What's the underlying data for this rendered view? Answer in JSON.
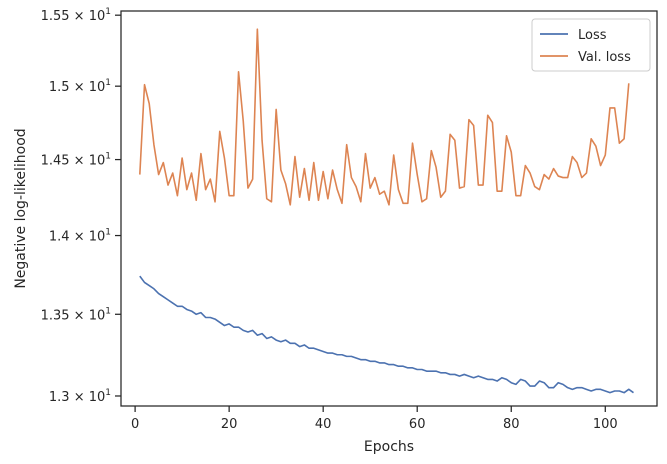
{
  "chart_data": {
    "type": "line",
    "title": "",
    "xlabel": "Epochs",
    "ylabel": "Negative log-likelihood",
    "yscale": "log",
    "xlim": [
      -3,
      111
    ],
    "ylim": [
      12.94,
      15.53
    ],
    "grid": false,
    "legend_placement": "top-right",
    "x_ticks": [
      0,
      20,
      40,
      60,
      80,
      100
    ],
    "x_tick_labels": [
      "0",
      "20",
      "40",
      "60",
      "80",
      "100"
    ],
    "y_ticks": [
      13.0,
      13.5,
      14.0,
      14.5,
      15.0,
      15.5
    ],
    "y_tick_labels": [
      {
        "mantissa": "1.3",
        "exp": "1"
      },
      {
        "mantissa": "1.35",
        "exp": "1"
      },
      {
        "mantissa": "1.4",
        "exp": "1"
      },
      {
        "mantissa": "1.45",
        "exp": "1"
      },
      {
        "mantissa": "1.5",
        "exp": "1"
      },
      {
        "mantissa": "1.55",
        "exp": "1"
      }
    ],
    "y_tick_times": "×",
    "y_tick_base": "10",
    "series": [
      {
        "name": "Loss",
        "color": "#4c72b0",
        "values": [
          13.74,
          13.7,
          13.68,
          13.66,
          13.63,
          13.61,
          13.59,
          13.57,
          13.55,
          13.55,
          13.53,
          13.52,
          13.5,
          13.51,
          13.48,
          13.48,
          13.47,
          13.45,
          13.43,
          13.44,
          13.42,
          13.42,
          13.4,
          13.39,
          13.4,
          13.37,
          13.38,
          13.35,
          13.36,
          13.34,
          13.33,
          13.34,
          13.32,
          13.32,
          13.3,
          13.31,
          13.29,
          13.29,
          13.28,
          13.27,
          13.26,
          13.26,
          13.25,
          13.25,
          13.24,
          13.24,
          13.23,
          13.22,
          13.22,
          13.21,
          13.21,
          13.2,
          13.2,
          13.19,
          13.19,
          13.18,
          13.18,
          13.17,
          13.17,
          13.16,
          13.16,
          13.15,
          13.15,
          13.15,
          13.14,
          13.14,
          13.13,
          13.13,
          13.12,
          13.13,
          13.12,
          13.11,
          13.12,
          13.11,
          13.1,
          13.1,
          13.09,
          13.11,
          13.1,
          13.08,
          13.07,
          13.1,
          13.09,
          13.06,
          13.06,
          13.09,
          13.08,
          13.05,
          13.05,
          13.08,
          13.07,
          13.05,
          13.04,
          13.05,
          13.05,
          13.04,
          13.03,
          13.04,
          13.04,
          13.03,
          13.02,
          13.03,
          13.03,
          13.02,
          13.04,
          13.02
        ]
      },
      {
        "name": "Val. loss",
        "color": "#dd8452",
        "values": [
          14.4,
          15.01,
          14.88,
          14.6,
          14.4,
          14.48,
          14.33,
          14.41,
          14.26,
          14.51,
          14.3,
          14.41,
          14.23,
          14.54,
          14.3,
          14.37,
          14.22,
          14.69,
          14.51,
          14.26,
          14.26,
          15.1,
          14.76,
          14.31,
          14.37,
          15.4,
          14.63,
          14.24,
          14.22,
          14.84,
          14.43,
          14.34,
          14.2,
          14.52,
          14.25,
          14.44,
          14.23,
          14.48,
          14.23,
          14.42,
          14.24,
          14.43,
          14.3,
          14.21,
          14.6,
          14.38,
          14.32,
          14.22,
          14.54,
          14.31,
          14.38,
          14.27,
          14.29,
          14.2,
          14.53,
          14.3,
          14.21,
          14.21,
          14.61,
          14.4,
          14.22,
          14.24,
          14.56,
          14.45,
          14.25,
          14.29,
          14.67,
          14.63,
          14.31,
          14.32,
          14.77,
          14.73,
          14.33,
          14.33,
          14.8,
          14.75,
          14.29,
          14.29,
          14.66,
          14.55,
          14.26,
          14.26,
          14.46,
          14.41,
          14.32,
          14.3,
          14.4,
          14.37,
          14.44,
          14.39,
          14.38,
          14.38,
          14.52,
          14.48,
          14.38,
          14.41,
          14.64,
          14.59,
          14.46,
          14.53,
          14.85,
          14.85,
          14.61,
          14.64,
          15.02
        ]
      }
    ]
  }
}
